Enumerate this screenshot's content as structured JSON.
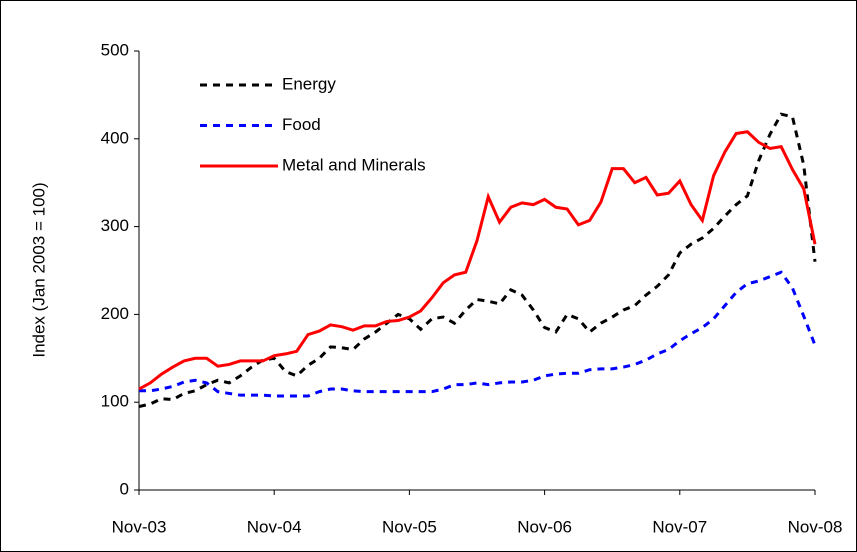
{
  "chart_data": {
    "type": "line",
    "y_label": "Index (Jan 2003 = 100)",
    "categories": [
      "Nov-03",
      null,
      null,
      null,
      null,
      null,
      null,
      null,
      null,
      null,
      null,
      null,
      "Nov-04",
      null,
      null,
      null,
      null,
      null,
      null,
      null,
      null,
      null,
      null,
      null,
      "Nov-05",
      null,
      null,
      null,
      null,
      null,
      null,
      null,
      null,
      null,
      null,
      null,
      "Nov-06",
      null,
      null,
      null,
      null,
      null,
      null,
      null,
      null,
      null,
      null,
      null,
      "Nov-07",
      null,
      null,
      null,
      null,
      null,
      null,
      null,
      null,
      null,
      null,
      null,
      "Nov-08"
    ],
    "series": [
      {
        "name": "Energy",
        "color": "#000000",
        "dashed": true,
        "values": [
          95,
          98,
          104,
          103,
          110,
          113,
          120,
          125,
          122,
          130,
          140,
          148,
          150,
          135,
          130,
          142,
          150,
          163,
          162,
          160,
          172,
          180,
          190,
          200,
          195,
          183,
          195,
          197,
          190,
          205,
          217,
          215,
          212,
          228,
          222,
          205,
          185,
          180,
          200,
          195,
          180,
          190,
          197,
          205,
          210,
          222,
          232,
          245,
          270,
          280,
          287,
          298,
          312,
          325,
          335,
          375,
          405,
          428,
          425,
          370,
          260
        ]
      },
      {
        "name": "Food",
        "color": "#0000ff",
        "dashed": true,
        "values": [
          113,
          113,
          115,
          118,
          123,
          125,
          122,
          112,
          110,
          108,
          108,
          108,
          107,
          107,
          107,
          107,
          112,
          115,
          115,
          113,
          112,
          112,
          112,
          112,
          112,
          112,
          112,
          115,
          120,
          120,
          122,
          120,
          122,
          123,
          123,
          125,
          130,
          132,
          133,
          133,
          137,
          138,
          138,
          140,
          143,
          148,
          155,
          160,
          170,
          178,
          185,
          195,
          210,
          225,
          235,
          238,
          243,
          248,
          230,
          198,
          165
        ]
      },
      {
        "name": "Metal and Minerals",
        "color": "#ff0000",
        "dashed": false,
        "values": [
          115,
          122,
          132,
          140,
          147,
          150,
          150,
          141,
          143,
          147,
          147,
          147,
          153,
          155,
          158,
          177,
          181,
          188,
          186,
          182,
          187,
          187,
          192,
          193,
          197,
          204,
          219,
          236,
          245,
          248,
          284,
          334,
          305,
          322,
          327,
          325,
          331,
          322,
          320,
          302,
          307,
          328,
          366,
          366,
          350,
          356,
          336,
          338,
          352,
          325,
          307,
          358,
          385,
          406,
          408,
          396,
          389,
          391,
          365,
          343,
          280
        ]
      }
    ],
    "ylim": [
      0,
      500
    ],
    "yticks": [
      0,
      100,
      200,
      300,
      400,
      500
    ],
    "grid": false
  }
}
